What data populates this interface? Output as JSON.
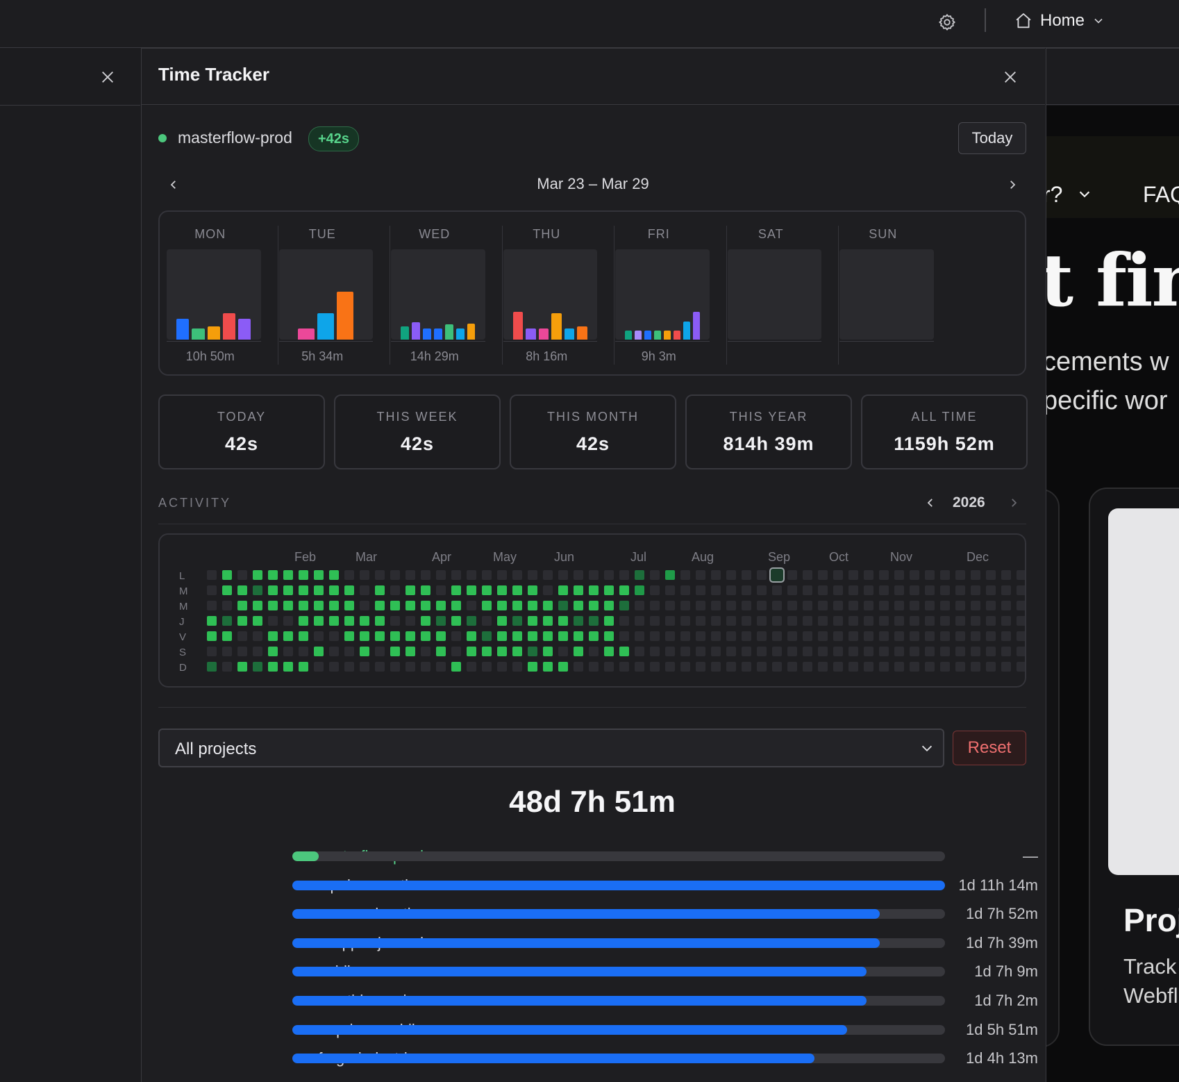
{
  "topbar": {
    "home_label": "Home",
    "icons": [
      "gear-icon",
      "home-icon",
      "chevron-down-icon"
    ]
  },
  "panel": {
    "title": "Time Tracker",
    "icons": [
      "close-icon"
    ]
  },
  "status": {
    "project": "masterflow-prod",
    "delta": "+42s",
    "today_button": "Today",
    "dot_color": "#4cc77d"
  },
  "week": {
    "range": "Mar 23 – Mar 29",
    "days": [
      {
        "name": "MON",
        "total": "10h 50m",
        "bars": [
          {
            "color": "#1f6fff",
            "h": 0.23
          },
          {
            "color": "#3dbf7a",
            "h": 0.12
          },
          {
            "color": "#f59e0b",
            "h": 0.15
          },
          {
            "color": "#f04c4c",
            "h": 0.29
          },
          {
            "color": "#8b5cf6",
            "h": 0.23
          }
        ]
      },
      {
        "name": "TUE",
        "total": "5h 34m",
        "bars": [
          {
            "color": "#ec4899",
            "h": 0.12
          },
          {
            "color": "#0ea5e9",
            "h": 0.29
          },
          {
            "color": "#f97316",
            "h": 0.53
          }
        ]
      },
      {
        "name": "WED",
        "total": "14h 29m",
        "bars": [
          {
            "color": "#10a37f",
            "h": 0.15
          },
          {
            "color": "#8b5cf6",
            "h": 0.19
          },
          {
            "color": "#1f6fff",
            "h": 0.12
          },
          {
            "color": "#1f6fff",
            "h": 0.12
          },
          {
            "color": "#3dbf7a",
            "h": 0.17
          },
          {
            "color": "#0ea5e9",
            "h": 0.12
          },
          {
            "color": "#f59e0b",
            "h": 0.18
          }
        ]
      },
      {
        "name": "THU",
        "total": "8h 16m",
        "bars": [
          {
            "color": "#f04c4c",
            "h": 0.31
          },
          {
            "color": "#8b5cf6",
            "h": 0.12
          },
          {
            "color": "#ec4899",
            "h": 0.12
          },
          {
            "color": "#f59e0b",
            "h": 0.29
          },
          {
            "color": "#0ea5e9",
            "h": 0.12
          },
          {
            "color": "#f97316",
            "h": 0.15
          }
        ]
      },
      {
        "name": "FRI",
        "total": "9h 3m",
        "bars": [
          {
            "color": "#10a37f",
            "h": 0.1
          },
          {
            "color": "#a78bfa",
            "h": 0.1
          },
          {
            "color": "#1f6fff",
            "h": 0.1
          },
          {
            "color": "#3dbf7a",
            "h": 0.1
          },
          {
            "color": "#f59e0b",
            "h": 0.1
          },
          {
            "color": "#f04c4c",
            "h": 0.1
          },
          {
            "color": "#0ea5e9",
            "h": 0.2
          },
          {
            "color": "#8b5cf6",
            "h": 0.31
          }
        ]
      },
      {
        "name": "SAT",
        "total": "",
        "bars": []
      },
      {
        "name": "SUN",
        "total": "",
        "bars": []
      }
    ]
  },
  "stats": [
    {
      "label": "TODAY",
      "value": "42s"
    },
    {
      "label": "THIS WEEK",
      "value": "42s"
    },
    {
      "label": "THIS MONTH",
      "value": "42s"
    },
    {
      "label": "THIS YEAR",
      "value": "814h 39m"
    },
    {
      "label": "ALL TIME",
      "value": "1159h 52m"
    }
  ],
  "activity": {
    "label": "ACTIVITY",
    "year": "2026",
    "months": [
      "Feb",
      "Mar",
      "Apr",
      "May",
      "Jun",
      "Jul",
      "Aug",
      "Sep",
      "Oct",
      "Nov",
      "Dec"
    ],
    "weekday_labels": [
      "L",
      "M",
      "M",
      "J",
      "V",
      "S",
      "D"
    ],
    "rows": [
      "0101111110000000000000000000302000000000000000000000000",
      "0113111111010110111111011111200000000000000000000000000",
      "0011111111011111101111131113000000000000000000000000000",
      "1311001111110013130131113310000000000000000000000000000",
      "1100111001111111013111111110000000000000000000000000000",
      "0000100100101101011113101011000000000000000000000000000",
      "3013111000000000100001110000000000000000000000000000000"
    ],
    "today_marker": "Mar 23"
  },
  "filter": {
    "select_value": "All projects",
    "reset_label": "Reset"
  },
  "grand_total": "48d 7h 51m",
  "projects": [
    {
      "name": "masterflow-prod",
      "value": "—",
      "fill": 0.04,
      "color": "#4cc77d",
      "name_color": "#58d58c"
    },
    {
      "name": "opal-cosmetics",
      "value": "1d 11h 14m",
      "fill": 1.0,
      "color": "#1a6ef5",
      "name_color": "#d8d8dc"
    },
    {
      "name": "canvas-educati...",
      "value": "1d 7h 52m",
      "fill": 0.9,
      "color": "#1a6ef5",
      "name_color": "#d8d8dc"
    },
    {
      "name": "copper-journal",
      "value": "1d 7h 39m",
      "fill": 0.9,
      "color": "#1a6ef5",
      "name_color": "#d8d8dc"
    },
    {
      "name": "meridian-resea...",
      "value": "1d 7h 9m",
      "fill": 0.88,
      "color": "#1a6ef5",
      "name_color": "#d8d8dc"
    },
    {
      "name": "tide-marine",
      "value": "1d 7h 2m",
      "fill": 0.88,
      "color": "#1a6ef5",
      "name_color": "#d8d8dc"
    },
    {
      "name": "prism-mobile",
      "value": "1d 5h 51m",
      "fill": 0.85,
      "color": "#1a6ef5",
      "name_color": "#d8d8dc"
    },
    {
      "name": "forge-industries",
      "value": "1d 4h 13m",
      "fill": 0.8,
      "color": "#1a6ef5",
      "name_color": "#d8d8dc"
    }
  ],
  "background_page": {
    "nav_item": "r?",
    "nav_faq": "FAQ",
    "hero": "t find",
    "line1": "cements w",
    "line2": "pecific wor",
    "card_title": "Proj",
    "card_line1": "Track",
    "card_line2": "Webfl"
  }
}
